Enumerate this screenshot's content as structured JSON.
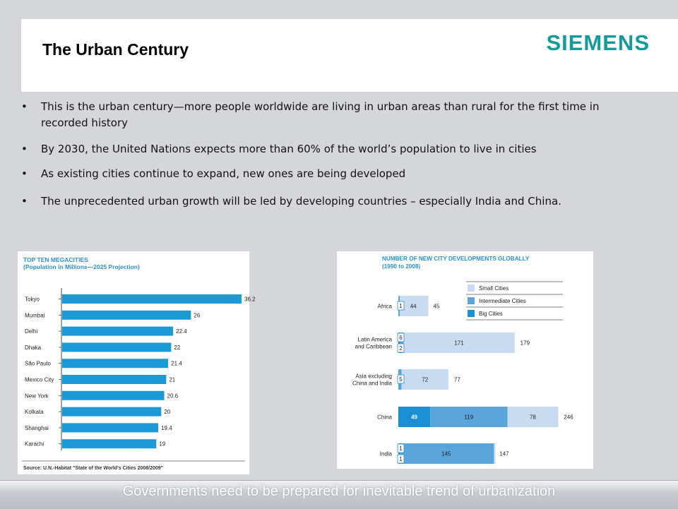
{
  "header": {
    "title": "The Urban Century",
    "logo": "SIEMENS",
    "accent_color": "#139a9a"
  },
  "bullets": [
    "This is the urban century—more people worldwide are living in urban areas than rural for the first time in recorded history",
    "By 2030, the United Nations expects more than 60% of the world’s population to live in cities",
    "As existing cities continue to expand, new ones are being developed",
    "The unprecedented urban growth will be led by  developing countries – especially India and China."
  ],
  "footer": {
    "text": "Governments need to be prepared for inevitable trend of urbanization"
  },
  "chart_data": [
    {
      "type": "bar",
      "orientation": "horizontal",
      "title": "TOP TEN MEGACITIES",
      "subtitle": "(Population in Millions—2025 Projection)",
      "categories": [
        "Tokyo",
        "Mumbai",
        "Delhi",
        "Dhaka",
        "São Paulo",
        "Mexico City",
        "New York",
        "Kolkata",
        "Shanghai",
        "Karachi"
      ],
      "values": [
        36.2,
        26,
        22.4,
        22,
        21.4,
        21,
        20.6,
        20,
        19.4,
        19
      ],
      "value_labels": [
        "36.2",
        "26",
        "22.4",
        "22",
        "21.4",
        "21",
        "20.6",
        "20",
        "19.4",
        "19"
      ],
      "source": "Source: U.N.-Habitat \"State of the World's Cities 2008/2009\"",
      "color": "#1b9ad6",
      "grid": false
    },
    {
      "type": "bar",
      "orientation": "horizontal",
      "stacked": true,
      "title": "NUMBER OF NEW CITY DEVELOPMENTS GLOBALLY",
      "subtitle": "(1990 to 2008)",
      "categories": [
        "Africa",
        "Latin America and Caribbean",
        "Asia excluding China and India",
        "China",
        "India"
      ],
      "category_lines": [
        [
          "Africa"
        ],
        [
          "Latin America",
          "and Caribbean"
        ],
        [
          "Asia excluding",
          "China and India"
        ],
        [
          "China"
        ],
        [
          "India"
        ]
      ],
      "series": [
        {
          "name": "Big Cities",
          "color": "#1b8fd3",
          "values": [
            0,
            2,
            0,
            49,
            1
          ],
          "labels": [
            "",
            "2",
            "",
            "49",
            "1"
          ]
        },
        {
          "name": "Intermediate Cities",
          "color": "#5aa6dc",
          "values": [
            1,
            6,
            5,
            119,
            145
          ],
          "labels": [
            "1",
            "6",
            "5",
            "119",
            "145"
          ]
        },
        {
          "name": "Small Cities",
          "color": "#c7dcf1",
          "values": [
            44,
            171,
            72,
            78,
            1
          ],
          "labels": [
            "44",
            "171",
            "72",
            "78",
            "1"
          ]
        }
      ],
      "totals": [
        45,
        179,
        77,
        246,
        147
      ],
      "legend_order": [
        "Small Cities",
        "Intermediate Cities",
        "Big Cities"
      ],
      "legend_position": "top-right",
      "grid": false
    }
  ]
}
